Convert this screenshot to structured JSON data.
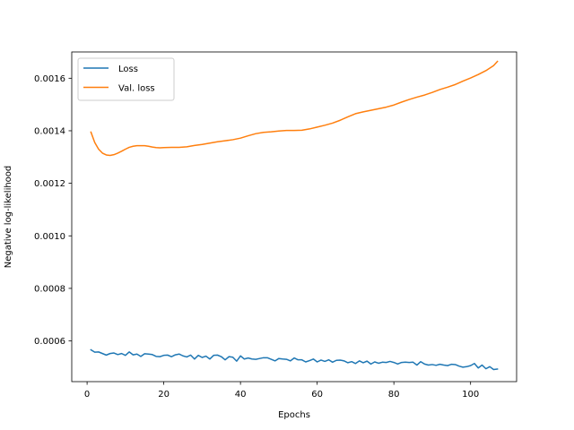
{
  "chart_data": {
    "type": "line",
    "xlabel": "Epochs",
    "ylabel": "Negative log-likelihood",
    "xlim": [
      -4,
      112
    ],
    "ylim": [
      0.000445,
      0.0017
    ],
    "xticks": [
      0,
      20,
      40,
      60,
      80,
      100
    ],
    "yticks": [
      0.0006,
      0.0008,
      0.001,
      0.0012,
      0.0014,
      0.0016
    ],
    "ytick_labels": [
      "0.0006",
      "0.0008",
      "0.0010",
      "0.0012",
      "0.0014",
      "0.0016"
    ],
    "grid": false,
    "legend": "top-left",
    "series": [
      {
        "name": "Loss",
        "color": "#1f77b4",
        "points": [
          [
            1,
            0.000566
          ],
          [
            2,
            0.000557
          ],
          [
            3,
            0.000558
          ],
          [
            4,
            0.000552
          ],
          [
            5,
            0.000546
          ],
          [
            6,
            0.000552
          ],
          [
            7,
            0.000554
          ],
          [
            8,
            0.000548
          ],
          [
            9,
            0.000552
          ],
          [
            10,
            0.000545
          ],
          [
            11,
            0.000558
          ],
          [
            12,
            0.000547
          ],
          [
            13,
            0.00055
          ],
          [
            14,
            0.000541
          ],
          [
            15,
            0.000551
          ],
          [
            16,
            0.00055
          ],
          [
            17,
            0.000548
          ],
          [
            18,
            0.000541
          ],
          [
            19,
            0.00054
          ],
          [
            20,
            0.000545
          ],
          [
            21,
            0.000546
          ],
          [
            22,
            0.00054
          ],
          [
            23,
            0.000547
          ],
          [
            24,
            0.00055
          ],
          [
            25,
            0.000543
          ],
          [
            26,
            0.000539
          ],
          [
            27,
            0.000546
          ],
          [
            28,
            0.000531
          ],
          [
            29,
            0.000545
          ],
          [
            30,
            0.000537
          ],
          [
            31,
            0.000542
          ],
          [
            32,
            0.000531
          ],
          [
            33,
            0.000545
          ],
          [
            34,
            0.000546
          ],
          [
            35,
            0.00054
          ],
          [
            36,
            0.000528
          ],
          [
            37,
            0.00054
          ],
          [
            38,
            0.000538
          ],
          [
            39,
            0.000523
          ],
          [
            40,
            0.000543
          ],
          [
            41,
            0.000531
          ],
          [
            42,
            0.000535
          ],
          [
            43,
            0.000531
          ],
          [
            44,
            0.00053
          ],
          [
            45,
            0.000533
          ],
          [
            46,
            0.000536
          ],
          [
            47,
            0.000536
          ],
          [
            48,
            0.00053
          ],
          [
            49,
            0.000524
          ],
          [
            50,
            0.000533
          ],
          [
            51,
            0.000531
          ],
          [
            52,
            0.00053
          ],
          [
            53,
            0.000524
          ],
          [
            54,
            0.000535
          ],
          [
            55,
            0.000528
          ],
          [
            56,
            0.000528
          ],
          [
            57,
            0.00052
          ],
          [
            58,
            0.000525
          ],
          [
            59,
            0.000531
          ],
          [
            60,
            0.00052
          ],
          [
            61,
            0.000527
          ],
          [
            62,
            0.000522
          ],
          [
            63,
            0.000528
          ],
          [
            64,
            0.000519
          ],
          [
            65,
            0.000526
          ],
          [
            66,
            0.000527
          ],
          [
            67,
            0.000524
          ],
          [
            68,
            0.000517
          ],
          [
            69,
            0.000521
          ],
          [
            70,
            0.000514
          ],
          [
            71,
            0.000524
          ],
          [
            72,
            0.000517
          ],
          [
            73,
            0.000523
          ],
          [
            74,
            0.000512
          ],
          [
            75,
            0.00052
          ],
          [
            76,
            0.000515
          ],
          [
            77,
            0.000519
          ],
          [
            78,
            0.000518
          ],
          [
            79,
            0.000522
          ],
          [
            80,
            0.000518
          ],
          [
            81,
            0.000512
          ],
          [
            82,
            0.000518
          ],
          [
            83,
            0.000519
          ],
          [
            84,
            0.000518
          ],
          [
            85,
            0.000519
          ],
          [
            86,
            0.000508
          ],
          [
            87,
            0.000521
          ],
          [
            88,
            0.000512
          ],
          [
            89,
            0.000508
          ],
          [
            90,
            0.00051
          ],
          [
            91,
            0.000507
          ],
          [
            92,
            0.000511
          ],
          [
            93,
            0.000508
          ],
          [
            94,
            0.000506
          ],
          [
            95,
            0.000511
          ],
          [
            96,
            0.00051
          ],
          [
            97,
            0.000504
          ],
          [
            98,
            0.0005
          ],
          [
            99,
            0.000502
          ],
          [
            100,
            0.000506
          ],
          [
            101,
            0.000514
          ],
          [
            102,
            0.000497
          ],
          [
            103,
            0.000508
          ],
          [
            104,
            0.000494
          ],
          [
            105,
            0.000502
          ],
          [
            106,
            0.000491
          ],
          [
            107,
            0.000493
          ]
        ]
      },
      {
        "name": "Val. loss",
        "color": "#ff7f0e",
        "points": [
          [
            1,
            0.001395
          ],
          [
            2,
            0.001355
          ],
          [
            3,
            0.00133
          ],
          [
            4,
            0.001315
          ],
          [
            5,
            0.001308
          ],
          [
            6,
            0.001306
          ],
          [
            7,
            0.001309
          ],
          [
            8,
            0.001315
          ],
          [
            9,
            0.001322
          ],
          [
            10,
            0.00133
          ],
          [
            11,
            0.001337
          ],
          [
            12,
            0.001341
          ],
          [
            13,
            0.001343
          ],
          [
            14,
            0.001343
          ],
          [
            15,
            0.001343
          ],
          [
            16,
            0.001341
          ],
          [
            17,
            0.001338
          ],
          [
            18,
            0.001336
          ],
          [
            19,
            0.001335
          ],
          [
            20,
            0.001336
          ],
          [
            22,
            0.001337
          ],
          [
            24,
            0.001337
          ],
          [
            26,
            0.001339
          ],
          [
            28,
            0.001344
          ],
          [
            30,
            0.001348
          ],
          [
            32,
            0.001353
          ],
          [
            34,
            0.001358
          ],
          [
            36,
            0.001362
          ],
          [
            38,
            0.001366
          ],
          [
            40,
            0.001372
          ],
          [
            42,
            0.001381
          ],
          [
            44,
            0.001389
          ],
          [
            46,
            0.001394
          ],
          [
            48,
            0.001396
          ],
          [
            50,
            0.001399
          ],
          [
            52,
            0.001401
          ],
          [
            54,
            0.001401
          ],
          [
            56,
            0.001402
          ],
          [
            58,
            0.001407
          ],
          [
            60,
            0.001414
          ],
          [
            62,
            0.001421
          ],
          [
            64,
            0.001429
          ],
          [
            66,
            0.00144
          ],
          [
            68,
            0.001453
          ],
          [
            70,
            0.001465
          ],
          [
            72,
            0.001472
          ],
          [
            74,
            0.001478
          ],
          [
            76,
            0.001484
          ],
          [
            78,
            0.00149
          ],
          [
            80,
            0.001498
          ],
          [
            82,
            0.001509
          ],
          [
            84,
            0.001519
          ],
          [
            86,
            0.001528
          ],
          [
            88,
            0.001536
          ],
          [
            90,
            0.001546
          ],
          [
            92,
            0.001557
          ],
          [
            94,
            0.001566
          ],
          [
            96,
            0.001576
          ],
          [
            98,
            0.001589
          ],
          [
            100,
            0.001601
          ],
          [
            102,
            0.001614
          ],
          [
            104,
            0.001629
          ],
          [
            106,
            0.001648
          ],
          [
            107,
            0.001664
          ]
        ]
      }
    ]
  }
}
